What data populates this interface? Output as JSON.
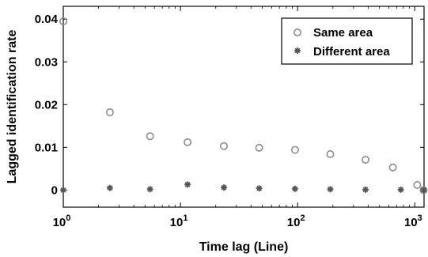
{
  "chart_data": {
    "type": "scatter",
    "xlabel": "Time lag (Line)",
    "ylabel": "Lagged identification rate",
    "x_scale": "log",
    "xlim": [
      1,
      1200
    ],
    "ylim": [
      -0.004,
      0.043
    ],
    "x_ticks": [
      {
        "value": 1,
        "base": "10",
        "exp": "0"
      },
      {
        "value": 10,
        "base": "10",
        "exp": "1"
      },
      {
        "value": 100,
        "base": "10",
        "exp": "2"
      },
      {
        "value": 1000,
        "base": "10",
        "exp": "3"
      }
    ],
    "y_ticks": [
      {
        "value": 0,
        "label": "0"
      },
      {
        "value": 0.01,
        "label": "0.01"
      },
      {
        "value": 0.02,
        "label": "0.02"
      },
      {
        "value": 0.03,
        "label": "0.03"
      },
      {
        "value": 0.04,
        "label": "0.04"
      }
    ],
    "grid": false,
    "legend_position": "top-right",
    "series": [
      {
        "name": "Same area",
        "marker": "circle",
        "color": "#8c8c8c",
        "x": [
          1,
          2.5,
          5.5,
          11.5,
          23.5,
          47,
          95,
          190,
          380,
          650,
          1050,
          1190
        ],
        "y": [
          0.0395,
          0.0182,
          0.0126,
          0.0112,
          0.0103,
          0.0099,
          0.0094,
          0.0084,
          0.0071,
          0.0053,
          0.0012,
          0.0
        ]
      },
      {
        "name": "Different area",
        "marker": "asterisk",
        "color": "#555555",
        "x": [
          1,
          2.5,
          5.5,
          11.5,
          23.5,
          47,
          95,
          190,
          380,
          760,
          1190
        ],
        "y": [
          0.0,
          0.0005,
          0.0002,
          0.0013,
          0.0006,
          0.0004,
          0.0003,
          0.0002,
          0.0001,
          0.0001,
          0.0
        ]
      }
    ]
  }
}
